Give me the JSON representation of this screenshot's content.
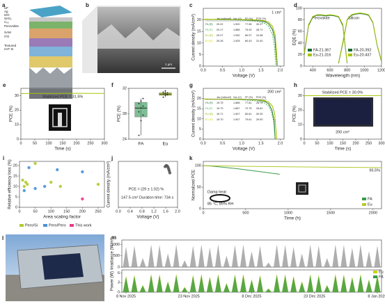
{
  "images": [
    {
      "label": "a",
      "texts": [
        "UF",
        "Ag",
        "IZO",
        "SnO₂",
        "C₆₀",
        "Perovskite",
        "SAM",
        "ITO",
        "Textured",
        "HJT Si"
      ]
    },
    {
      "label": "b",
      "texts": [
        "1 μm"
      ]
    },
    {
      "label": "l"
    }
  ],
  "chart_data": [
    {
      "type": "line",
      "label": "c",
      "xlabel": "Voltage (V)",
      "ylabel": "Current density (mA/cm²)",
      "annotations": [
        "1 cm²"
      ],
      "xlim": [
        0,
        2.1
      ],
      "xticks": [
        {
          "value": 0,
          "label": "0.0"
        },
        {
          "value": 0.5,
          "label": "0.5"
        },
        {
          "value": 1,
          "label": "1.0"
        },
        {
          "value": 1.5,
          "label": "1.5"
        },
        {
          "value": 2,
          "label": "2.0"
        }
      ],
      "ylim": [
        0,
        25
      ],
      "yticks": [
        0,
        5,
        10,
        15,
        20
      ],
      "series": [
        {
          "color": "#1b6e34",
          "x": [
            0,
            0.5,
            1.0,
            1.4,
            1.6,
            1.7,
            1.8,
            1.86,
            1.92
          ],
          "values": [
            20.22,
            20.18,
            20.1,
            19.8,
            19.2,
            18.3,
            15.8,
            11.8,
            0
          ]
        },
        {
          "color": "#4caf50",
          "dash": true,
          "x": [
            0,
            0.5,
            1.0,
            1.4,
            1.6,
            1.7,
            1.8,
            1.85,
            1.886
          ],
          "values": [
            20.17,
            20.1,
            19.9,
            19.4,
            18.5,
            17.2,
            13.5,
            8.5,
            0
          ]
        },
        {
          "color": "#8db600",
          "x": [
            0,
            0.5,
            1.0,
            1.4,
            1.6,
            1.7,
            1.8,
            1.87,
            1.93
          ],
          "values": [
            20.27,
            20.25,
            20.2,
            20.0,
            19.6,
            19.0,
            17.2,
            13.5,
            0
          ]
        },
        {
          "color": "#c9d400",
          "dash": true,
          "x": [
            0,
            0.5,
            1.0,
            1.4,
            1.6,
            1.7,
            1.8,
            1.87,
            1.928
          ],
          "values": [
            20.28,
            20.25,
            20.18,
            19.95,
            19.5,
            18.9,
            17.0,
            13.2,
            0
          ]
        }
      ],
      "table": {
        "columns": [
          "",
          "Jsc (mA/cm²)",
          "Voc (V)",
          "FF (%)",
          "PCE (%)"
        ],
        "rows": [
          [
            "FA (R)",
            "20.22",
            "1.920",
            "77.96",
            "30.27"
          ],
          [
            "FA (F)",
            "20.17",
            "1.886",
            "75.32",
            "28.71"
          ],
          [
            "Eu (R)",
            "20.27",
            "1.930",
            "80.97",
            "31.68"
          ],
          [
            "Eu (F)",
            "20.28",
            "1.928",
            "80.43",
            "31.40"
          ]
        ]
      }
    },
    {
      "type": "line",
      "label": "d",
      "xlabel": "Wavelength (nm)",
      "ylabel": "EQE (%)",
      "annotations": [
        "Perovskite",
        "Silicon"
      ],
      "xlim": [
        300,
        1200
      ],
      "xticks": [
        400,
        600,
        800,
        1000,
        1200
      ],
      "ylim": [
        0,
        100
      ],
      "yticks": [
        0,
        20,
        40,
        60,
        80,
        100
      ],
      "series": [
        {
          "name": "FA-21.367",
          "color": "#1b6e34",
          "x": [
            300,
            350,
            400,
            450,
            500,
            550,
            600,
            650,
            700,
            750,
            780,
            800
          ],
          "values": [
            20,
            70,
            85,
            88,
            88,
            87,
            88,
            87,
            85,
            70,
            30,
            5
          ]
        },
        {
          "name": "Eu-21.316",
          "color": "#a8c400",
          "x": [
            300,
            350,
            400,
            450,
            500,
            550,
            600,
            650,
            700,
            750,
            780,
            800
          ],
          "values": [
            22,
            72,
            86,
            89,
            89,
            88,
            89,
            88,
            86,
            72,
            32,
            6
          ]
        },
        {
          "name": "FA-20.392",
          "color": "#1b6e34",
          "x": [
            700,
            750,
            800,
            850,
            900,
            950,
            1000,
            1050,
            1100,
            1150,
            1200
          ],
          "values": [
            5,
            40,
            80,
            88,
            90,
            91,
            90,
            88,
            75,
            35,
            8
          ]
        },
        {
          "name": "Eu-20.437",
          "color": "#a8c400",
          "x": [
            700,
            750,
            800,
            850,
            900,
            950,
            1000,
            1050,
            1100,
            1150,
            1200
          ],
          "values": [
            6,
            42,
            81,
            89,
            91,
            92,
            91,
            89,
            76,
            36,
            9
          ]
        }
      ]
    },
    {
      "type": "line",
      "label": "e",
      "xlabel": "Time (s)",
      "ylabel": "PCE (%)",
      "annotations": [
        "Stabilized PCE = 31.5%"
      ],
      "xlim": [
        0,
        300
      ],
      "xticks": [
        0,
        50,
        100,
        150,
        200,
        250,
        300
      ],
      "ylim": [
        0,
        35
      ],
      "yticks": [
        0,
        10,
        20,
        30
      ],
      "series": [
        {
          "color": "#a8c400",
          "x": [
            0,
            50,
            100,
            150,
            200,
            250,
            300
          ],
          "values": [
            31.4,
            31.5,
            31.5,
            31.5,
            31.6,
            31.5,
            31.5
          ]
        }
      ]
    },
    {
      "type": "box",
      "label": "f",
      "ylabel": "PCE (%)",
      "categories": [
        "FA",
        "Eu"
      ],
      "ylim": [
        24,
        32
      ],
      "yticks": [
        24,
        28,
        32
      ],
      "colors": [
        "#4aa36a",
        "#a8c400"
      ],
      "boxes": [
        {
          "min": 24.6,
          "q1": 27.5,
          "median": 28.9,
          "q3": 29.8,
          "max": 30.4
        },
        {
          "min": 30.6,
          "q1": 30.9,
          "median": 31.1,
          "q3": 31.3,
          "max": 31.6
        }
      ],
      "points": [
        [
          24.6,
          26.9,
          27.8,
          28.3,
          28.9,
          29.2,
          29.6,
          30.0,
          30.4
        ],
        [
          30.6,
          30.9,
          31.0,
          31.1,
          31.2,
          31.3,
          31.4,
          31.6
        ]
      ]
    },
    {
      "type": "line",
      "label": "g",
      "xlabel": "Voltage (V)",
      "ylabel": "Current density (mA/cm²)",
      "annotations": [
        "200 cm²"
      ],
      "xlim": [
        0,
        2.1
      ],
      "xticks": [
        {
          "value": 0,
          "label": "0.0"
        },
        {
          "value": 0.5,
          "label": "0.5"
        },
        {
          "value": 1,
          "label": "1.0"
        },
        {
          "value": 1.5,
          "label": "1.5"
        },
        {
          "value": 2,
          "label": "2.0"
        }
      ],
      "ylim": [
        0,
        25
      ],
      "yticks": [
        0,
        5,
        10,
        15,
        20
      ],
      "series": [
        {
          "color": "#1b6e34",
          "x": [
            0,
            0.5,
            1.0,
            1.4,
            1.6,
            1.7,
            1.78,
            1.84,
            1.868
          ],
          "values": [
            19.75,
            19.7,
            19.6,
            19.3,
            18.6,
            17.4,
            14.5,
            9.5,
            0
          ]
        },
        {
          "color": "#4caf50",
          "dash": true,
          "x": [
            0,
            0.5,
            1.0,
            1.4,
            1.6,
            1.7,
            1.78,
            1.83,
            1.867
          ],
          "values": [
            19.73,
            19.65,
            19.4,
            18.8,
            17.8,
            16.3,
            13.0,
            8.5,
            0
          ]
        },
        {
          "color": "#8db600",
          "x": [
            0,
            0.5,
            1.0,
            1.4,
            1.6,
            1.7,
            1.8,
            1.86,
            1.907
          ],
          "values": [
            19.71,
            19.7,
            19.65,
            19.45,
            19.0,
            18.3,
            16.2,
            12.0,
            0
          ]
        },
        {
          "color": "#c9d400",
          "dash": true,
          "x": [
            0,
            0.5,
            1.0,
            1.4,
            1.6,
            1.7,
            1.8,
            1.86,
            1.907
          ],
          "values": [
            19.7,
            19.68,
            19.6,
            19.4,
            18.9,
            18.2,
            16.0,
            11.6,
            0
          ]
        }
      ],
      "table": {
        "columns": [
          "",
          "Jsc (mA/cm²)",
          "Voc (V)",
          "FF (%)",
          "PCE (%)"
        ],
        "rows": [
          [
            "FA (R)",
            "19.75",
            "1.868",
            "77.81",
            "28.70"
          ],
          [
            "FA (F)",
            "19.73",
            "1.867",
            "72.75",
            "26.81"
          ],
          [
            "Eu (R)",
            "19.71",
            "1.907",
            "80.61",
            "30.30"
          ],
          [
            "Eu (F)",
            "19.70",
            "1.907",
            "79.61",
            "29.90"
          ]
        ]
      }
    },
    {
      "type": "line",
      "label": "h",
      "xlabel": "Time (s)",
      "ylabel": "PCE (%)",
      "annotations": [
        "Stabilized PCE = 30.0%",
        "200 cm²"
      ],
      "xlim": [
        0,
        300
      ],
      "xticks": [
        0,
        50,
        100,
        150,
        200,
        250,
        300
      ],
      "ylim": [
        0,
        35
      ],
      "yticks": [
        0,
        10,
        20,
        30
      ],
      "series": [
        {
          "color": "#a8c400",
          "x": [
            0,
            50,
            100,
            150,
            200,
            250,
            300
          ],
          "values": [
            29.9,
            30.0,
            30.0,
            30.0,
            30.1,
            30.0,
            30.0
          ]
        }
      ]
    },
    {
      "type": "scatter",
      "label": "i",
      "xlabel": "Area scaling factor",
      "ylabel": "Relative efficiency loss (%)",
      "xlim": [
        0,
        270
      ],
      "xticks": [
        0,
        50,
        100,
        150,
        200,
        250
      ],
      "ylim": [
        0,
        22
      ],
      "yticks": [
        0,
        5,
        10,
        15,
        20
      ],
      "series": [
        {
          "name": "Pero/Si",
          "color": "#b5c930",
          "x": [
            10,
            15,
            20,
            25,
            50,
            100,
            130,
            250
          ],
          "values": [
            13,
            10,
            12,
            11,
            21,
            12,
            10,
            11
          ]
        },
        {
          "name": "Pero/Pero",
          "color": "#4a90d9",
          "x": [
            15,
            30,
            50,
            80,
            120,
            200
          ],
          "values": [
            8,
            19,
            9,
            10,
            18,
            17
          ]
        },
        {
          "name": "This work",
          "color": "#e8398a",
          "x": [
            200
          ],
          "values": [
            4
          ]
        }
      ]
    },
    {
      "type": "scatter",
      "label": "j",
      "xlabel": "Voltage (V)",
      "ylabel": "Current density (mA/cm²)",
      "annotations": [
        "PCE = (29 ± 1.02) %",
        "147.5 cm²  Duration time: 734 s"
      ],
      "xlim": [
        0,
        2
      ],
      "xticks": [
        {
          "value": 0,
          "label": "0.0"
        },
        {
          "value": 0.4,
          "label": "0.4"
        },
        {
          "value": 0.8,
          "label": "0.8"
        },
        {
          "value": 1.2,
          "label": "1.2"
        },
        {
          "value": 1.6,
          "label": "1.6"
        },
        {
          "value": 2,
          "label": "2.0"
        }
      ],
      "ylim": [
        0,
        22
      ],
      "series": [
        {
          "color": "#555555",
          "x": [
            1.58,
            1.62,
            1.65,
            1.68,
            1.7,
            1.72,
            1.74
          ],
          "values": [
            19.5,
            20,
            19.8,
            19.2,
            18.4,
            17.5,
            16.5
          ]
        }
      ]
    },
    {
      "type": "line",
      "label": "k",
      "xlabel": "Time (h)",
      "ylabel": "Normalized PCE",
      "annotations": [
        "95.5%",
        "Damp heat",
        "85 °C, 85% RH"
      ],
      "xlim": [
        0,
        2100
      ],
      "xticks": [
        0,
        500,
        1000,
        1500,
        2000
      ],
      "ylim": [
        0,
        110
      ],
      "yticks": [
        0,
        50,
        100
      ],
      "series": [
        {
          "name": "FA",
          "color": "#3a9a4a",
          "x": [
            0,
            100,
            200,
            400,
            600,
            900
          ],
          "values": [
            100,
            99,
            97,
            93,
            88,
            80
          ]
        },
        {
          "name": "Eu",
          "color": "#b5c930",
          "x": [
            0,
            250,
            500,
            1000,
            1500,
            2000,
            2100
          ],
          "values": [
            100,
            99.5,
            98.5,
            97.5,
            96.5,
            95.8,
            95.5
          ]
        }
      ]
    },
    {
      "type": "bar",
      "label": "m",
      "ylabel": "Irradiance (W/m²)",
      "xlim": [
        -1,
        61
      ],
      "ylim": [
        0,
        1200
      ],
      "yticks": [
        0,
        500,
        1000
      ],
      "x": [
        0,
        2,
        4,
        6,
        8,
        10,
        12,
        14,
        16,
        18,
        20,
        22,
        24,
        26,
        28,
        30,
        32,
        34,
        36,
        38,
        40,
        42,
        44,
        46,
        48,
        50,
        52,
        54,
        56,
        58,
        60
      ],
      "series": [
        {
          "color": "#9a9a9a",
          "values": [
            900,
            950,
            400,
            1000,
            980,
            600,
            1000,
            300,
            950,
            1000,
            870,
            1000,
            500,
            980,
            1000,
            700,
            950,
            200,
            1000,
            980,
            900,
            600,
            1000,
            950,
            400,
            1000,
            980,
            850,
            1000,
            700,
            950
          ]
        }
      ]
    },
    {
      "type": "bar",
      "ylabel": "Power (W)",
      "xlim": [
        -1,
        61
      ],
      "ylim": [
        0,
        7
      ],
      "yticks": [
        0,
        3,
        6
      ],
      "xticks": [
        {
          "value": 0,
          "label": "8 Nov 2025"
        },
        {
          "value": 15,
          "label": "23 Nov 2025"
        },
        {
          "value": 30,
          "label": "8 Dec 2025"
        },
        {
          "value": 45,
          "label": "23 Dec 2025"
        },
        {
          "value": 60,
          "label": "8 Jan 2026"
        }
      ],
      "x": [
        0,
        2,
        4,
        6,
        8,
        10,
        12,
        14,
        16,
        18,
        20,
        22,
        24,
        26,
        28,
        30,
        32,
        34,
        36,
        38,
        40,
        42,
        44,
        46,
        48,
        50,
        52,
        54,
        56,
        58,
        60
      ],
      "series": [
        {
          "name": "Eu",
          "color": "#c9d400",
          "values": [
            5.2,
            5.5,
            2.3,
            5.8,
            5.7,
            3.5,
            5.8,
            1.7,
            5.5,
            5.8,
            5.0,
            5.8,
            2.9,
            5.7,
            5.8,
            4.1,
            5.5,
            1.2,
            5.8,
            5.7,
            5.2,
            3.5,
            5.8,
            5.5,
            2.3,
            5.8,
            5.7,
            4.9,
            5.8,
            4.1,
            5.5
          ]
        },
        {
          "name": "FA",
          "color": "#3a9a4a",
          "values": [
            4.8,
            5.1,
            2.1,
            5.4,
            5.3,
            3.2,
            5.4,
            1.5,
            5.1,
            5.4,
            4.6,
            5.4,
            2.7,
            5.3,
            5.4,
            3.8,
            5.1,
            1.1,
            5.4,
            5.3,
            4.8,
            3.2,
            5.4,
            5.1,
            2.1,
            5.4,
            5.3,
            4.5,
            5.4,
            3.8,
            5.1
          ]
        }
      ]
    }
  ]
}
